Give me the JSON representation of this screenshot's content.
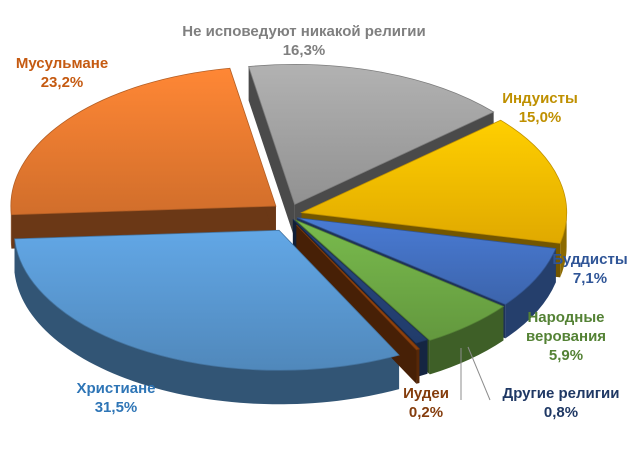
{
  "chart_data": {
    "type": "pie",
    "title": "",
    "slices": [
      {
        "label": "Не исповедуют никакой религии",
        "value": 16.3,
        "value_text": "16,3%",
        "color": "#a5a5a5"
      },
      {
        "label": "Индуисты",
        "value": 15.0,
        "value_text": "15,0%",
        "color": "#ffc000"
      },
      {
        "label": "Буддисты",
        "value": 7.1,
        "value_text": "7,1%",
        "color": "#4472c4"
      },
      {
        "label": "Народные верования",
        "value": 5.9,
        "value_text": "5,9%",
        "color": "#70ad47"
      },
      {
        "label": "Другие религии",
        "value": 0.8,
        "value_text": "0,8%",
        "color": "#264478"
      },
      {
        "label": "Иудеи",
        "value": 0.2,
        "value_text": "0,2%",
        "color": "#9e480e"
      },
      {
        "label": "Христиане",
        "value": 31.5,
        "value_text": "31,5%",
        "color": "#5b9bd5"
      },
      {
        "label": "Мусульмане",
        "value": 23.2,
        "value_text": "23,2%",
        "color": "#ed7d31"
      }
    ],
    "label_colors": {
      "Не исповедуют никакой религии": "#7f7f7f",
      "Индуисты": "#bf9000",
      "Буддисты": "#2f5597",
      "Народные верования": "#548235",
      "Другие религии": "#1f3864",
      "Иудеи": "#843c0c",
      "Христиане": "#2e75b6",
      "Мусульмане": "#c55a11"
    }
  }
}
